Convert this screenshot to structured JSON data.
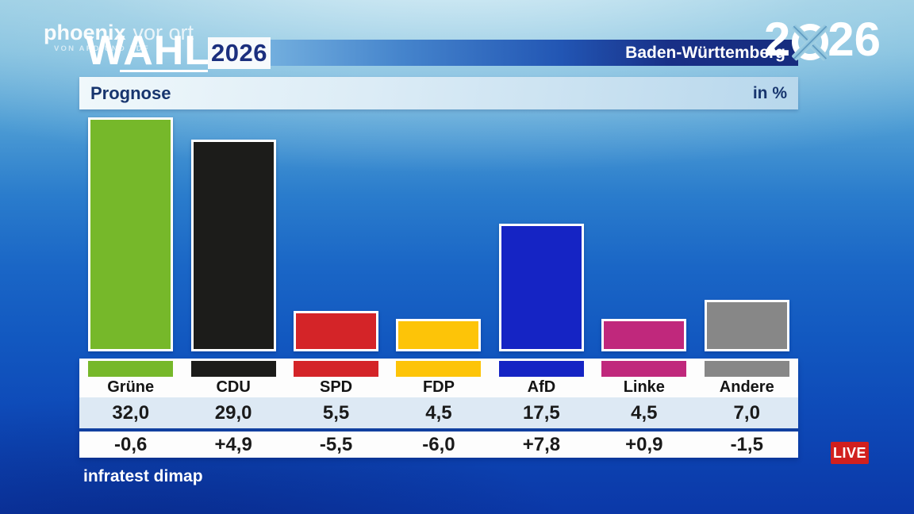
{
  "branding": {
    "phoenix": "phoenix",
    "phoenix_suffix": "vor ort",
    "phoenix_subtitle": "VON ARD UND ZDF",
    "wahl": "WAHL",
    "year": "2026",
    "region": "Baden-Württemberg",
    "logo_2026_left": "2",
    "logo_2026_right": "26"
  },
  "panel": {
    "title": "Prognose",
    "unit_label": "in %"
  },
  "source": "infratest dimap",
  "live_badge": "LIVE",
  "colors": {
    "live_red": "#d1201e",
    "banner_navy": "#162c7e",
    "divider_navy": "#1140a0",
    "value_band_blue": "#dde9f4",
    "title_navy": "#17356e"
  },
  "chart_data": {
    "type": "bar",
    "title": "Prognose",
    "unit": "%",
    "categories": [
      "Grüne",
      "CDU",
      "SPD",
      "FDP",
      "AfD",
      "Linke",
      "Andere"
    ],
    "values": [
      32.0,
      29.0,
      5.5,
      4.5,
      17.5,
      4.5,
      7.0
    ],
    "value_labels": [
      "32,0",
      "29,0",
      "5,5",
      "4,5",
      "17,5",
      "4,5",
      "7,0"
    ],
    "change_labels": [
      "-0,6",
      "+4,9",
      "-5,5",
      "-6,0",
      "+7,8",
      "+0,9",
      "-1,5"
    ],
    "bar_colors": [
      "#76b82a",
      "#1c1c1a",
      "#d42428",
      "#fdc408",
      "#1524c4",
      "#c0287c",
      "#878787"
    ],
    "ylim": [
      0,
      32
    ],
    "legend_position": "none",
    "grid": false,
    "source": "infratest dimap"
  }
}
